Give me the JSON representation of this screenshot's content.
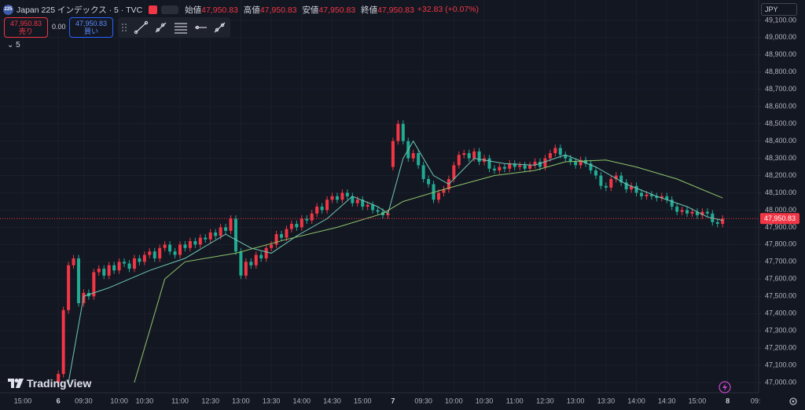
{
  "header": {
    "badge": "225",
    "title": "Japan 225 インデックス · 5 · TVC",
    "ohlc": [
      {
        "label": "始値",
        "value": "47,950.83"
      },
      {
        "label": "高値",
        "value": "47,950.83"
      },
      {
        "label": "安値",
        "value": "47,950.83"
      },
      {
        "label": "終値",
        "value": "47,950.83"
      }
    ],
    "change": "+32.83 (+0.07%)"
  },
  "trade": {
    "sell_price": "47,950.83",
    "sell_label": "売り",
    "spread": "0.00",
    "buy_price": "47,950.83",
    "buy_label": "買い"
  },
  "indicator_toggle": "5",
  "currency": "JPY",
  "brand": "TradingView",
  "chart_data": {
    "type": "candlestick",
    "up_color": "#f23645",
    "down_color": "#22ab94",
    "grid": true,
    "ylim": [
      46941,
      49218
    ],
    "xlim": [
      -11.5,
      138.1
    ],
    "yticks": [
      {
        "value": 47000,
        "label": "47,000.00"
      },
      {
        "value": 47100,
        "label": "47,100.00"
      },
      {
        "value": 47200,
        "label": "47,200.00"
      },
      {
        "value": 47300,
        "label": "47,300.00"
      },
      {
        "value": 47400,
        "label": "47,400.00"
      },
      {
        "value": 47500,
        "label": "47,500.00"
      },
      {
        "value": 47600,
        "label": "47,600.00"
      },
      {
        "value": 47700,
        "label": "47,700.00"
      },
      {
        "value": 47800,
        "label": "47,800.00"
      },
      {
        "value": 47900,
        "label": "47,900.00"
      },
      {
        "value": 48000,
        "label": "48,000.00"
      },
      {
        "value": 48100,
        "label": "48,100.00"
      },
      {
        "value": 48200,
        "label": "48,200.00"
      },
      {
        "value": 48300,
        "label": "48,300.00"
      },
      {
        "value": 48400,
        "label": "48,400.00"
      },
      {
        "value": 48500,
        "label": "48,500.00"
      },
      {
        "value": 48600,
        "label": "48,600.00"
      },
      {
        "value": 48700,
        "label": "48,700.00"
      },
      {
        "value": 48800,
        "label": "48,800.00"
      },
      {
        "value": 48900,
        "label": "48,900.00"
      },
      {
        "value": 49000,
        "label": "49,000.00"
      },
      {
        "value": 49100,
        "label": "49,100.00"
      }
    ],
    "xticks": [
      {
        "value": -7,
        "label": "15:00"
      },
      {
        "value": 0,
        "label": "6"
      },
      {
        "value": 5,
        "label": "09:30"
      },
      {
        "value": 12,
        "label": "10:00"
      },
      {
        "value": 17,
        "label": "10:30"
      },
      {
        "value": 24,
        "label": "11:00"
      },
      {
        "value": 30,
        "label": "12:30"
      },
      {
        "value": 36,
        "label": "13:00"
      },
      {
        "value": 42,
        "label": "13:30"
      },
      {
        "value": 48,
        "label": "14:00"
      },
      {
        "value": 54,
        "label": "14:30"
      },
      {
        "value": 60,
        "label": "15:00"
      },
      {
        "value": 66,
        "label": "7"
      },
      {
        "value": 72,
        "label": "09:30"
      },
      {
        "value": 78,
        "label": "10:00"
      },
      {
        "value": 84,
        "label": "10:30"
      },
      {
        "value": 90,
        "label": "11:00"
      },
      {
        "value": 96,
        "label": "12:30"
      },
      {
        "value": 102,
        "label": "13:00"
      },
      {
        "value": 108,
        "label": "13:30"
      },
      {
        "value": 114,
        "label": "14:00"
      },
      {
        "value": 120,
        "label": "14:30"
      },
      {
        "value": 126,
        "label": "15:00"
      },
      {
        "value": 132,
        "label": "8"
      },
      {
        "value": 137.5,
        "label": "09:"
      }
    ],
    "last_price": {
      "value": 47950.83,
      "label": "47,950.83",
      "color": "#f23645"
    },
    "candles": [
      [
        47000,
        47070,
        46990,
        47050
      ],
      [
        47050,
        47440,
        47030,
        47420
      ],
      [
        47420,
        47700,
        47400,
        47680
      ],
      [
        47680,
        47740,
        47660,
        47720
      ],
      [
        47720,
        47740,
        47440,
        47460
      ],
      [
        47460,
        47540,
        47440,
        47520
      ],
      [
        47520,
        47540,
        47480,
        47500
      ],
      [
        47500,
        47660,
        47480,
        47640
      ],
      [
        47640,
        47680,
        47620,
        47660
      ],
      [
        47660,
        47680,
        47600,
        47620
      ],
      [
        47620,
        47700,
        47600,
        47680
      ],
      [
        47680,
        47700,
        47630,
        47650
      ],
      [
        47650,
        47720,
        47630,
        47700
      ],
      [
        47700,
        47720,
        47670,
        47690
      ],
      [
        47690,
        47710,
        47640,
        47660
      ],
      [
        47660,
        47740,
        47640,
        47720
      ],
      [
        47720,
        47740,
        47680,
        47700
      ],
      [
        47700,
        47760,
        47680,
        47740
      ],
      [
        47740,
        47780,
        47720,
        47760
      ],
      [
        47760,
        47780,
        47700,
        47720
      ],
      [
        47720,
        47800,
        47700,
        47780
      ],
      [
        47780,
        47820,
        47760,
        47800
      ],
      [
        47800,
        47820,
        47740,
        47760
      ],
      [
        47760,
        47780,
        47720,
        47740
      ],
      [
        47740,
        47820,
        47720,
        47800
      ],
      [
        47800,
        47820,
        47760,
        47780
      ],
      [
        47780,
        47840,
        47760,
        47820
      ],
      [
        47820,
        47840,
        47780,
        47800
      ],
      [
        47800,
        47860,
        47780,
        47840
      ],
      [
        47840,
        47860,
        47810,
        47830
      ],
      [
        47830,
        47890,
        47810,
        47870
      ],
      [
        47870,
        47890,
        47830,
        47850
      ],
      [
        47850,
        47920,
        47830,
        47900
      ],
      [
        47900,
        47920,
        47860,
        47880
      ],
      [
        47880,
        47970,
        47860,
        47950
      ],
      [
        47950,
        47970,
        47740,
        47760
      ],
      [
        47760,
        47780,
        47600,
        47620
      ],
      [
        47620,
        47720,
        47600,
        47700
      ],
      [
        47700,
        47720,
        47660,
        47680
      ],
      [
        47680,
        47760,
        47660,
        47740
      ],
      [
        47740,
        47760,
        47700,
        47720
      ],
      [
        47720,
        47800,
        47700,
        47780
      ],
      [
        47780,
        47820,
        47760,
        47800
      ],
      [
        47800,
        47880,
        47780,
        47860
      ],
      [
        47860,
        47880,
        47820,
        47840
      ],
      [
        47840,
        47910,
        47820,
        47890
      ],
      [
        47890,
        47940,
        47870,
        47920
      ],
      [
        47920,
        47940,
        47880,
        47900
      ],
      [
        47900,
        47970,
        47880,
        47950
      ],
      [
        47950,
        47970,
        47920,
        47940
      ],
      [
        47940,
        48000,
        47920,
        47980
      ],
      [
        47980,
        48040,
        47960,
        48020
      ],
      [
        48020,
        48040,
        47980,
        48000
      ],
      [
        48000,
        48080,
        47980,
        48060
      ],
      [
        48060,
        48100,
        48040,
        48080
      ],
      [
        48080,
        48100,
        48040,
        48060
      ],
      [
        48060,
        48120,
        48040,
        48100
      ],
      [
        48100,
        48120,
        48060,
        48080
      ],
      [
        48080,
        48100,
        48020,
        48040
      ],
      [
        48040,
        48080,
        48020,
        48060
      ],
      [
        48060,
        48080,
        48000,
        48020
      ],
      [
        48020,
        48050,
        48000,
        48030
      ],
      [
        48030,
        48050,
        47980,
        48000
      ],
      [
        48000,
        48020,
        47970,
        47990
      ],
      [
        47990,
        48010,
        47950,
        47970
      ],
      [
        47970,
        48000,
        47950,
        47980
      ],
      [
        48250,
        48420,
        48230,
        48400
      ],
      [
        48400,
        48520,
        48380,
        48500
      ],
      [
        48500,
        48520,
        48380,
        48400
      ],
      [
        48400,
        48420,
        48280,
        48300
      ],
      [
        48300,
        48350,
        48280,
        48330
      ],
      [
        48330,
        48350,
        48240,
        48260
      ],
      [
        48260,
        48280,
        48160,
        48180
      ],
      [
        48180,
        48200,
        48130,
        48150
      ],
      [
        48150,
        48170,
        48040,
        48060
      ],
      [
        48060,
        48120,
        48040,
        48100
      ],
      [
        48100,
        48140,
        48080,
        48120
      ],
      [
        48120,
        48200,
        48100,
        48180
      ],
      [
        48180,
        48280,
        48160,
        48260
      ],
      [
        48260,
        48340,
        48240,
        48320
      ],
      [
        48320,
        48350,
        48300,
        48330
      ],
      [
        48330,
        48350,
        48280,
        48300
      ],
      [
        48300,
        48360,
        48280,
        48340
      ],
      [
        48340,
        48360,
        48260,
        48280
      ],
      [
        48280,
        48320,
        48260,
        48300
      ],
      [
        48300,
        48320,
        48220,
        48240
      ],
      [
        48240,
        48260,
        48210,
        48230
      ],
      [
        48230,
        48270,
        48210,
        48250
      ],
      [
        48250,
        48270,
        48220,
        48240
      ],
      [
        48240,
        48290,
        48220,
        48270
      ],
      [
        48270,
        48290,
        48230,
        48250
      ],
      [
        48250,
        48280,
        48230,
        48260
      ],
      [
        48260,
        48280,
        48220,
        48240
      ],
      [
        48240,
        48280,
        48220,
        48260
      ],
      [
        48260,
        48300,
        48240,
        48280
      ],
      [
        48280,
        48300,
        48230,
        48250
      ],
      [
        48250,
        48320,
        48230,
        48300
      ],
      [
        48300,
        48350,
        48280,
        48330
      ],
      [
        48330,
        48380,
        48310,
        48360
      ],
      [
        48360,
        48380,
        48300,
        48320
      ],
      [
        48320,
        48340,
        48280,
        48300
      ],
      [
        48300,
        48320,
        48260,
        48280
      ],
      [
        48280,
        48300,
        48240,
        48260
      ],
      [
        48260,
        48310,
        48240,
        48290
      ],
      [
        48290,
        48310,
        48250,
        48270
      ],
      [
        48270,
        48290,
        48210,
        48230
      ],
      [
        48230,
        48250,
        48180,
        48200
      ],
      [
        48200,
        48220,
        48120,
        48140
      ],
      [
        48140,
        48160,
        48110,
        48130
      ],
      [
        48130,
        48200,
        48110,
        48180
      ],
      [
        48180,
        48220,
        48160,
        48200
      ],
      [
        48200,
        48220,
        48140,
        48160
      ],
      [
        48160,
        48180,
        48100,
        48120
      ],
      [
        48120,
        48160,
        48100,
        48140
      ],
      [
        48140,
        48160,
        48080,
        48100
      ],
      [
        48100,
        48120,
        48060,
        48080
      ],
      [
        48080,
        48110,
        48060,
        48090
      ],
      [
        48090,
        48110,
        48060,
        48080
      ],
      [
        48080,
        48100,
        48050,
        48070
      ],
      [
        48070,
        48100,
        48050,
        48080
      ],
      [
        48080,
        48100,
        48040,
        48060
      ],
      [
        48060,
        48080,
        48000,
        48020
      ],
      [
        48020,
        48040,
        47970,
        47990
      ],
      [
        47990,
        48020,
        47970,
        48000
      ],
      [
        48000,
        48020,
        47960,
        47980
      ],
      [
        47980,
        48010,
        47960,
        47990
      ],
      [
        47990,
        48010,
        47950,
        47970
      ],
      [
        47970,
        48010,
        47950,
        47990
      ],
      [
        47990,
        48010,
        47960,
        47980
      ],
      [
        47980,
        48000,
        47910,
        47930
      ],
      [
        47930,
        47950,
        47900,
        47920
      ],
      [
        47920,
        47970,
        47900,
        47950.83
      ]
    ],
    "ma_lines": [
      {
        "color": "#6fc9b6",
        "x": [
          2,
          5,
          10,
          18,
          25,
          33,
          38,
          42,
          47,
          53,
          58,
          63,
          65,
          68,
          70,
          74,
          77,
          82,
          88,
          94,
          100,
          106,
          112,
          118,
          124,
          128,
          131
        ],
        "values": [
          47000,
          47500,
          47550,
          47650,
          47720,
          47860,
          47780,
          47750,
          47850,
          47950,
          48080,
          48020,
          47980,
          48300,
          48400,
          48200,
          48150,
          48300,
          48270,
          48260,
          48320,
          48250,
          48150,
          48080,
          48020,
          47960,
          47940
        ]
      },
      {
        "color": "#8fc46b",
        "x": [
          15,
          18,
          21,
          25,
          35,
          45,
          55,
          64,
          68,
          76,
          86,
          94,
          100,
          108,
          114,
          122,
          131
        ],
        "values": [
          47000,
          47300,
          47600,
          47700,
          47750,
          47830,
          47900,
          47980,
          48050,
          48120,
          48200,
          48230,
          48280,
          48290,
          48250,
          48180,
          48070
        ]
      }
    ]
  }
}
